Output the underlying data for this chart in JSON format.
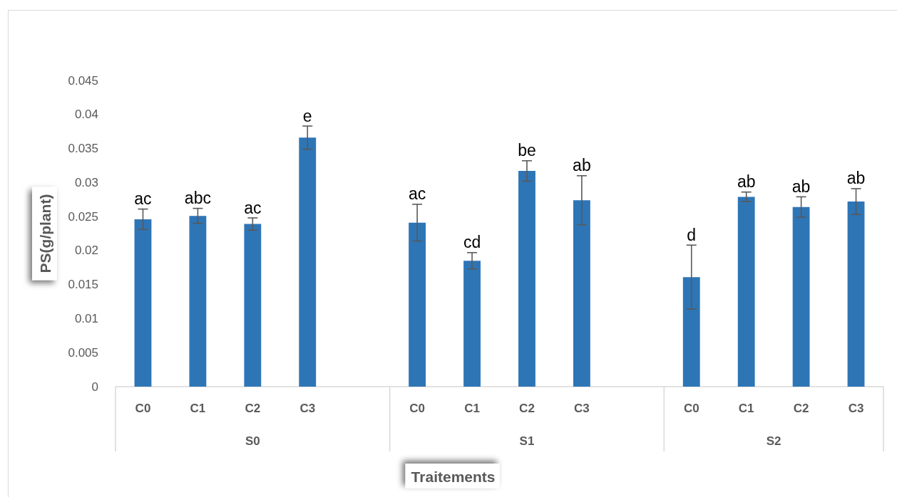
{
  "chart_data": {
    "type": "bar",
    "xlabel": "Traitements",
    "ylabel": "PS(g/plant)",
    "categories": [
      "C0",
      "C1",
      "C2",
      "C3",
      null,
      "C0",
      "C1",
      "C2",
      "C3",
      null,
      "C0",
      "C1",
      "C2",
      "C3"
    ],
    "values": [
      0.0246,
      0.0251,
      0.0239,
      0.0366,
      null,
      0.0241,
      0.0185,
      0.0317,
      0.0274,
      null,
      0.0161,
      0.0279,
      0.0264,
      0.0272
    ],
    "errors": [
      0.0015,
      0.0011,
      0.0009,
      0.0017,
      null,
      0.0027,
      0.0012,
      0.0015,
      0.0036,
      null,
      0.0047,
      0.0007,
      0.0015,
      0.0019
    ],
    "value_labels": [
      "ac",
      "abc",
      "ac",
      "e",
      null,
      "ac",
      "cd",
      "be",
      "ab",
      null,
      "d",
      "ab",
      "ab",
      "ab"
    ],
    "color": "#2e75b6",
    "ylim": [
      0,
      0.045
    ],
    "yticks": [
      0,
      0.005,
      0.01,
      0.015,
      0.02,
      0.025,
      0.03,
      0.035,
      0.04,
      0.045
    ],
    "annotations": [
      "S0",
      "S1",
      "S2"
    ]
  }
}
